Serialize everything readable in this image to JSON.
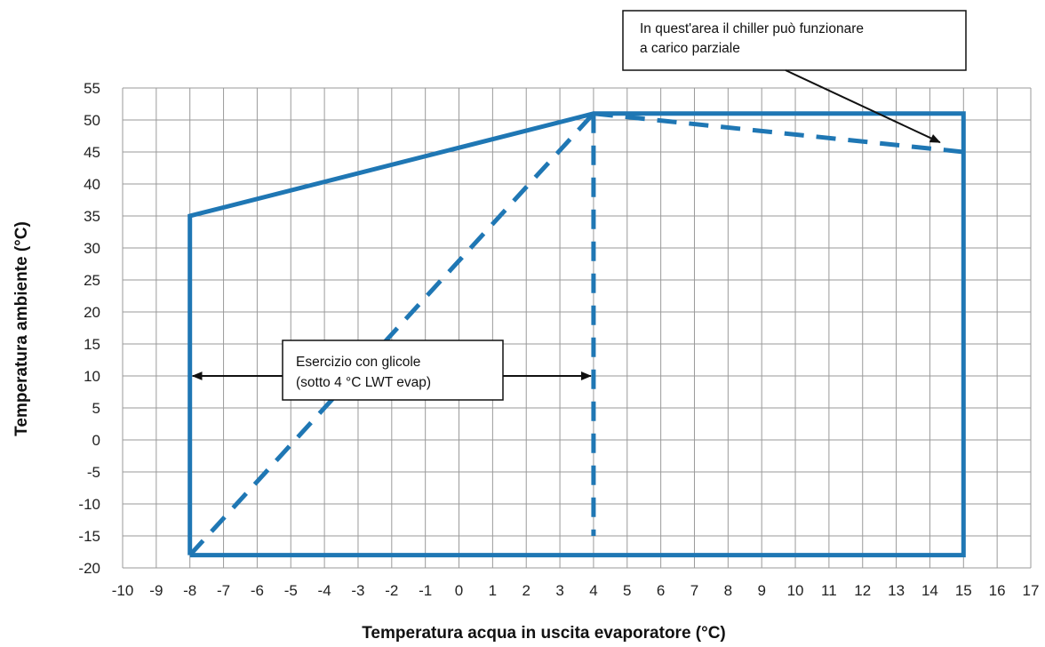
{
  "chart_data": {
    "type": "line",
    "title": "",
    "xlabel": "Temperatura acqua in uscita evaporatore (°C)",
    "ylabel": "Temperatura ambiente (°C)",
    "xlim": [
      -10,
      17
    ],
    "ylim": [
      -20,
      55
    ],
    "x_ticks": [
      "-10",
      "-9",
      "-8",
      "-7",
      "-6",
      "-5",
      "-4",
      "-3",
      "-2",
      "-1",
      "0",
      "1",
      "2",
      "3",
      "4",
      "5",
      "6",
      "7",
      "8",
      "9",
      "10",
      "11",
      "12",
      "13",
      "14",
      "15",
      "16",
      "17"
    ],
    "y_ticks": [
      "55",
      "50",
      "45",
      "40",
      "35",
      "30",
      "25",
      "20",
      "15",
      "10",
      "5",
      "0",
      "-5",
      "-10",
      "-15",
      "-20"
    ],
    "grid": true,
    "line_color": "#1f77b4",
    "series": [
      {
        "style": "solid",
        "x": [
          -8,
          -8,
          4,
          15,
          15,
          -8
        ],
        "y": [
          -18,
          35,
          51,
          51,
          -18,
          -18
        ]
      },
      {
        "style": "dashed",
        "x": [
          -8,
          4
        ],
        "y": [
          -18,
          51
        ]
      },
      {
        "style": "dashed",
        "x": [
          4,
          4
        ],
        "y": [
          51,
          -15
        ]
      },
      {
        "style": "dashed",
        "x": [
          4,
          15
        ],
        "y": [
          51,
          45
        ]
      }
    ],
    "annotations": [
      {
        "lines": [
          "In quest'area il chiller può funzionare",
          "a carico parziale"
        ],
        "arrow_to": [
          14.3,
          46.5
        ]
      },
      {
        "lines": [
          "Esercizio con glicole",
          "(sotto 4 °C LWT evap)"
        ],
        "arrow_left_to": [
          -8,
          10
        ],
        "arrow_right_to": [
          4,
          10
        ]
      }
    ]
  }
}
